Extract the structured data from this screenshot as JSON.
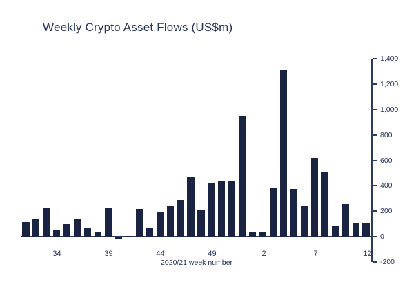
{
  "title": "Weekly Crypto Asset Flows (US$m)",
  "colors": {
    "bar": "#1b2342",
    "axis": "#2c3c60",
    "text": "#26345a"
  },
  "chart_data": {
    "type": "bar",
    "title": "Weekly Crypto Asset Flows (US$m)",
    "xlabel": "2020/21 week number",
    "ylabel": "",
    "ylim": [
      -200,
      1400
    ],
    "grid": false,
    "y_axis_position": "right",
    "legend": "none",
    "categories": [
      "31",
      "32",
      "33",
      "34",
      "35",
      "36",
      "37",
      "38",
      "39",
      "40",
      "41",
      "42",
      "43",
      "44",
      "45",
      "46",
      "47",
      "48",
      "49",
      "50",
      "51",
      "52",
      "1",
      "2",
      "3",
      "4",
      "5",
      "6",
      "7",
      "8",
      "9",
      "10",
      "11",
      "12"
    ],
    "values": [
      115,
      135,
      225,
      55,
      100,
      140,
      70,
      40,
      225,
      -20,
      5,
      215,
      65,
      195,
      240,
      290,
      470,
      205,
      425,
      435,
      440,
      950,
      35,
      40,
      385,
      1310,
      375,
      245,
      620,
      510,
      90,
      255,
      105,
      110
    ],
    "x_tick_labels": [
      "34",
      "39",
      "44",
      "49",
      "2",
      "7",
      "12"
    ],
    "y_ticks": [
      {
        "value": -200,
        "label": "-200"
      },
      {
        "value": 0,
        "label": "0"
      },
      {
        "value": 200,
        "label": "200"
      },
      {
        "value": 400,
        "label": "400"
      },
      {
        "value": 600,
        "label": "600"
      },
      {
        "value": 800,
        "label": "800"
      },
      {
        "value": 1000,
        "label": "1,000"
      },
      {
        "value": 1200,
        "label": "1,200"
      },
      {
        "value": 1400,
        "label": "1,400"
      }
    ]
  }
}
